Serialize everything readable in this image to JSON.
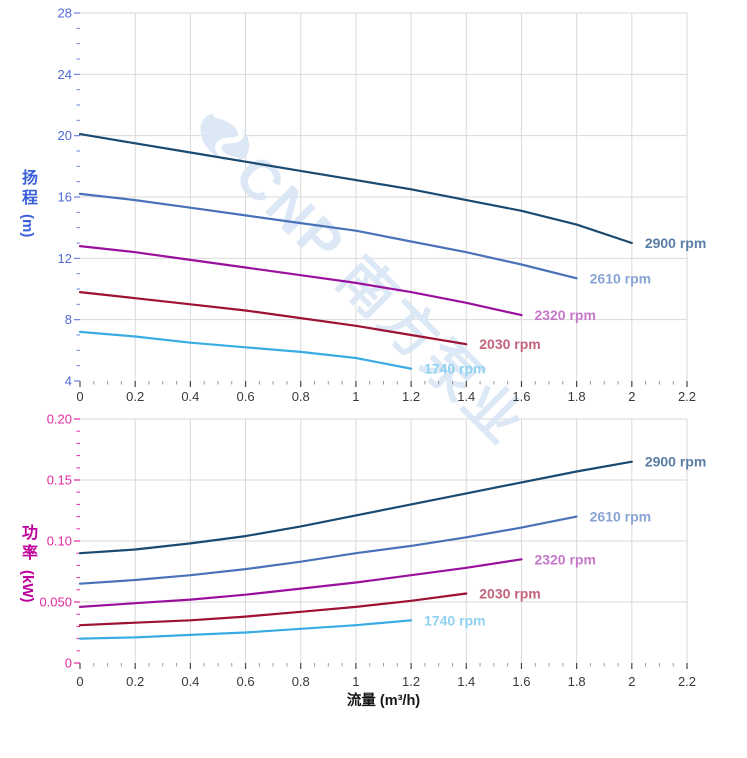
{
  "watermark": {
    "text": "CNP 南方泵业",
    "color": "#d9e6f4"
  },
  "chart_data": [
    {
      "type": "line",
      "title": "",
      "xlabel": "",
      "ylabel": "扬程 (m)",
      "ylabel_stack": [
        "扬",
        "程"
      ],
      "ylabel_unit": "(m)",
      "ylim": [
        4,
        28
      ],
      "xlim": [
        0,
        2.2
      ],
      "grid": true,
      "legend_position": "right-of-line-end",
      "axis_title_color": "#3a5fd9",
      "tick_label_color": "#5069d4",
      "tick_mark_color": "#6b83dc",
      "y_tick_values": [
        4,
        8,
        12,
        16,
        20,
        24,
        28
      ],
      "y_tick_labels": [
        "4",
        "8",
        "12",
        "16",
        "20",
        "24",
        "28"
      ],
      "y_minor_step": 1,
      "series": [
        {
          "name": "2900 rpm",
          "color": "#1b4a70",
          "label_color": "#5a7da6",
          "x": [
            0,
            0.2,
            0.4,
            0.6,
            0.8,
            1,
            1.2,
            1.4,
            1.6,
            1.8,
            2
          ],
          "y": [
            20.1,
            19.5,
            18.9,
            18.3,
            17.7,
            17.1,
            16.5,
            15.8,
            15.1,
            14.2,
            13
          ]
        },
        {
          "name": "2610 rpm",
          "color": "#4a72b8",
          "label_color": "#88a4d4",
          "x": [
            0,
            0.2,
            0.4,
            0.6,
            0.8,
            1,
            1.2,
            1.4,
            1.6,
            1.8
          ],
          "y": [
            16.2,
            15.8,
            15.3,
            14.8,
            14.3,
            13.8,
            13.1,
            12.4,
            11.6,
            10.7
          ]
        },
        {
          "name": "2320 rpm",
          "color": "#9a109c",
          "label_color": "#c678c8",
          "x": [
            0,
            0.2,
            0.4,
            0.6,
            0.8,
            1,
            1.2,
            1.4,
            1.6
          ],
          "y": [
            12.8,
            12.4,
            11.9,
            11.4,
            10.9,
            10.4,
            9.8,
            9.1,
            8.3
          ]
        },
        {
          "name": "2030 rpm",
          "color": "#9d1132",
          "label_color": "#c2637b",
          "x": [
            0,
            0.2,
            0.4,
            0.6,
            0.8,
            1,
            1.2,
            1.4
          ],
          "y": [
            9.8,
            9.4,
            9,
            8.6,
            8.1,
            7.6,
            7,
            6.4
          ]
        },
        {
          "name": "1740 rpm",
          "color": "#39ace4",
          "label_color": "#90d2f2",
          "x": [
            0,
            0.2,
            0.4,
            0.6,
            0.8,
            1,
            1.2
          ],
          "y": [
            7.2,
            6.9,
            6.5,
            6.2,
            5.9,
            5.5,
            4.8
          ]
        }
      ]
    },
    {
      "type": "line",
      "title": "",
      "xlabel": "流量 (m³/h)",
      "ylabel": "功率 (kW)",
      "ylabel_stack": [
        "功",
        "率"
      ],
      "ylabel_unit": "(kW)",
      "ylim": [
        0,
        0.2
      ],
      "xlim": [
        0,
        2.2
      ],
      "grid": true,
      "legend_position": "right-of-line-end",
      "axis_title_color": "#c0009c",
      "tick_label_color": "#e02a9e",
      "tick_mark_color": "#e02a9e",
      "y_tick_values": [
        0,
        0.05,
        0.1,
        0.15,
        0.2
      ],
      "y_tick_labels": [
        "0",
        "0.050",
        "0.10",
        "0.15",
        "0.20"
      ],
      "y_minor_step": 0.01,
      "series": [
        {
          "name": "2900 rpm",
          "color": "#1b4a70",
          "label_color": "#5a7da6",
          "x": [
            0,
            0.2,
            0.4,
            0.6,
            0.8,
            1,
            1.2,
            1.4,
            1.6,
            1.8,
            2
          ],
          "y": [
            0.09,
            0.093,
            0.098,
            0.104,
            0.112,
            0.121,
            0.13,
            0.139,
            0.148,
            0.157,
            0.165
          ]
        },
        {
          "name": "2610 rpm",
          "color": "#4a72b8",
          "label_color": "#88a4d4",
          "x": [
            0,
            0.2,
            0.4,
            0.6,
            0.8,
            1,
            1.2,
            1.4,
            1.6,
            1.8
          ],
          "y": [
            0.065,
            0.068,
            0.072,
            0.077,
            0.083,
            0.09,
            0.096,
            0.103,
            0.111,
            0.12
          ]
        },
        {
          "name": "2320 rpm",
          "color": "#9a109c",
          "label_color": "#c678c8",
          "x": [
            0,
            0.2,
            0.4,
            0.6,
            0.8,
            1,
            1.2,
            1.4,
            1.6
          ],
          "y": [
            0.046,
            0.049,
            0.052,
            0.056,
            0.061,
            0.066,
            0.072,
            0.078,
            0.085
          ]
        },
        {
          "name": "2030 rpm",
          "color": "#9d1132",
          "label_color": "#c2637b",
          "x": [
            0,
            0.2,
            0.4,
            0.6,
            0.8,
            1,
            1.2,
            1.4
          ],
          "y": [
            0.031,
            0.033,
            0.035,
            0.038,
            0.042,
            0.046,
            0.051,
            0.057
          ]
        },
        {
          "name": "1740 rpm",
          "color": "#39ace4",
          "label_color": "#90d2f2",
          "x": [
            0,
            0.2,
            0.4,
            0.6,
            0.8,
            1,
            1.2
          ],
          "y": [
            0.02,
            0.021,
            0.023,
            0.025,
            0.028,
            0.031,
            0.035
          ]
        }
      ]
    }
  ],
  "x_axis": {
    "title": "流量 (m³/h)",
    "title_color": "#161616",
    "tick_values": [
      0,
      0.2,
      0.4,
      0.6,
      0.8,
      1,
      1.2,
      1.4,
      1.6,
      1.8,
      2,
      2.2
    ],
    "tick_labels": [
      "0",
      "0.2",
      "0.4",
      "0.6",
      "0.8",
      "1",
      "1.2",
      "1.4",
      "1.6",
      "1.8",
      "2",
      "2.2"
    ],
    "minor_step": 0.05,
    "label_color": "#3a3a3a",
    "major_tick_color": "#444444",
    "minor_tick_color": "#999999"
  },
  "grid_color": "#d9d9d9"
}
